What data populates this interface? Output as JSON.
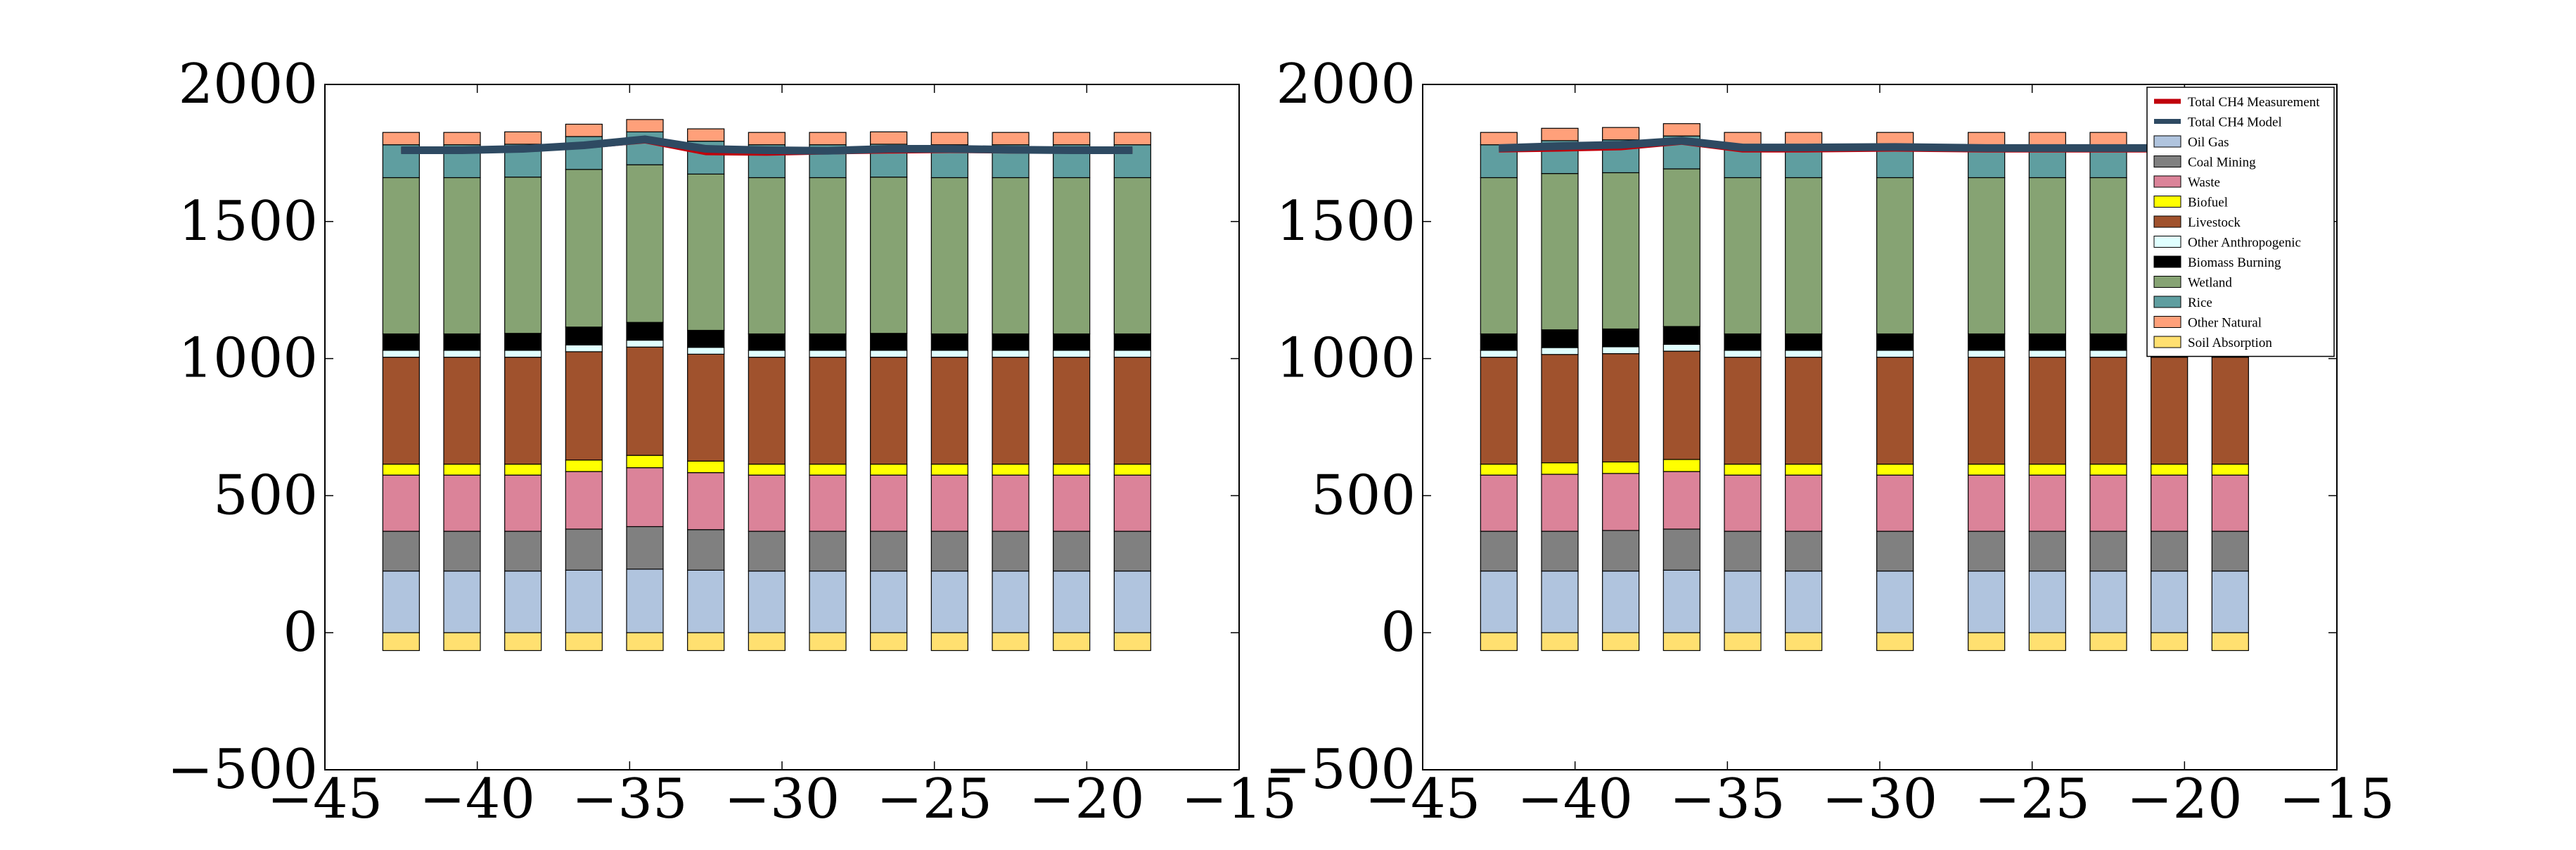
{
  "chart_data": [
    {
      "type": "bar",
      "stacked": true,
      "x": [
        -42.5,
        -40.5,
        -38.5,
        -36.5,
        -34.5,
        -32.5,
        -30.5,
        -28.5,
        -26.5,
        -24.5,
        -22.5,
        -20.5,
        -18.5
      ],
      "xlim": [
        -45,
        -15
      ],
      "ylim": [
        -500,
        2000
      ],
      "xticks": [
        -45,
        -40,
        -35,
        -30,
        -25,
        -20,
        -15
      ],
      "yticks": [
        -500,
        0,
        500,
        1000,
        1500,
        2000
      ],
      "xtick_labels": [
        "−45",
        "−40",
        "−35",
        "−30",
        "−25",
        "−20",
        "−15"
      ],
      "ytick_labels": [
        "−500",
        "0",
        "500",
        "1000",
        "1500",
        "2000"
      ],
      "grid": false,
      "stack_series": [
        {
          "name": "Oil  Gas",
          "values": [
            225,
            225,
            225,
            228,
            232,
            228,
            225,
            225,
            225,
            225,
            225,
            225,
            225
          ]
        },
        {
          "name": "Coal Mining",
          "values": [
            145,
            145,
            145,
            150,
            155,
            148,
            145,
            145,
            145,
            145,
            145,
            145,
            145
          ]
        },
        {
          "name": "Waste",
          "values": [
            205,
            205,
            205,
            210,
            215,
            208,
            205,
            205,
            205,
            205,
            205,
            205,
            205
          ]
        },
        {
          "name": "Biofuel",
          "values": [
            40,
            40,
            40,
            42,
            45,
            42,
            40,
            40,
            40,
            40,
            40,
            40,
            40
          ]
        },
        {
          "name": "Livestock",
          "values": [
            390,
            390,
            390,
            395,
            395,
            390,
            390,
            390,
            390,
            390,
            390,
            390,
            390
          ]
        },
        {
          "name": "Other Anthropogenic",
          "values": [
            25,
            25,
            25,
            25,
            25,
            25,
            25,
            25,
            25,
            25,
            25,
            25,
            25
          ]
        },
        {
          "name": "Biomass Burning",
          "values": [
            60,
            60,
            62,
            65,
            65,
            62,
            60,
            60,
            62,
            60,
            60,
            60,
            60
          ]
        },
        {
          "name": "Wetland",
          "values": [
            570,
            570,
            570,
            575,
            575,
            570,
            570,
            570,
            570,
            570,
            570,
            570,
            570
          ]
        },
        {
          "name": "Rice",
          "values": [
            120,
            120,
            120,
            120,
            120,
            120,
            120,
            120,
            120,
            120,
            120,
            120,
            120
          ]
        },
        {
          "name": "Other Natural",
          "values": [
            45,
            45,
            45,
            45,
            45,
            45,
            45,
            45,
            45,
            45,
            45,
            45,
            45
          ]
        }
      ],
      "negative_series": [
        {
          "name": "Soil Absorption",
          "values": [
            -65,
            -65,
            -65,
            -65,
            -65,
            -65,
            -65,
            -65,
            -65,
            -65,
            -65,
            -65,
            -65
          ]
        }
      ],
      "line_series": [
        {
          "name": "Total CH4 Measurement",
          "values": [
            1760,
            1762,
            1768,
            1775,
            1795,
            1752,
            1750,
            1755,
            1758,
            1760,
            1758,
            1758,
            1758
          ]
        },
        {
          "name": "Total CH4 Model",
          "values": [
            1760,
            1760,
            1765,
            1778,
            1800,
            1765,
            1760,
            1758,
            1765,
            1765,
            1762,
            1760,
            1760
          ]
        }
      ]
    },
    {
      "type": "bar",
      "stacked": true,
      "x": [
        -42.5,
        -40.5,
        -38.5,
        -36.5,
        -34.5,
        -32.5,
        -29.5,
        -26.5,
        -24.5,
        -22.5,
        -20.5,
        -18.5
      ],
      "xlim": [
        -45,
        -15
      ],
      "ylim": [
        -500,
        2000
      ],
      "xticks": [
        -45,
        -40,
        -35,
        -30,
        -25,
        -20,
        -15
      ],
      "yticks": [
        -500,
        0,
        500,
        1000,
        1500,
        2000
      ],
      "xtick_labels": [
        "−45",
        "−40",
        "−35",
        "−30",
        "−25",
        "−20",
        "−15"
      ],
      "ytick_labels": [
        "−500",
        "0",
        "500",
        "1000",
        "1500",
        "2000"
      ],
      "grid": false,
      "legend_position": "top-right",
      "stack_series": [
        {
          "name": "Oil  Gas",
          "values": [
            225,
            225,
            225,
            228,
            225,
            225,
            225,
            225,
            225,
            225,
            225,
            225
          ]
        },
        {
          "name": "Coal Mining",
          "values": [
            145,
            145,
            148,
            150,
            145,
            145,
            145,
            145,
            145,
            145,
            145,
            145
          ]
        },
        {
          "name": "Waste",
          "values": [
            205,
            208,
            208,
            210,
            205,
            205,
            205,
            205,
            205,
            205,
            205,
            205
          ]
        },
        {
          "name": "Biofuel",
          "values": [
            40,
            42,
            42,
            44,
            40,
            40,
            40,
            40,
            40,
            40,
            40,
            40
          ]
        },
        {
          "name": "Livestock",
          "values": [
            390,
            395,
            395,
            395,
            390,
            390,
            390,
            390,
            390,
            390,
            390,
            390
          ]
        },
        {
          "name": "Other Anthropogenic",
          "values": [
            25,
            25,
            25,
            25,
            25,
            25,
            25,
            25,
            25,
            25,
            25,
            25
          ]
        },
        {
          "name": "Biomass Burning",
          "values": [
            60,
            65,
            65,
            65,
            60,
            60,
            60,
            60,
            60,
            60,
            60,
            60
          ]
        },
        {
          "name": "Wetland",
          "values": [
            570,
            570,
            570,
            575,
            570,
            570,
            570,
            570,
            570,
            570,
            570,
            570
          ]
        },
        {
          "name": "Rice",
          "values": [
            120,
            120,
            120,
            120,
            120,
            120,
            120,
            120,
            120,
            120,
            120,
            120
          ]
        },
        {
          "name": "Other Natural",
          "values": [
            45,
            45,
            45,
            45,
            45,
            45,
            45,
            45,
            45,
            45,
            45,
            45
          ]
        }
      ],
      "negative_series": [
        {
          "name": "Soil Absorption",
          "values": [
            -65,
            -65,
            -65,
            -65,
            -65,
            -65,
            -65,
            -65,
            -65,
            -65,
            -65,
            -65
          ]
        }
      ],
      "line_series": [
        {
          "name": "Total CH4 Measurement",
          "values": [
            1762,
            1765,
            1770,
            1790,
            1762,
            1762,
            1765,
            1762,
            1762,
            1762,
            1762,
            1762
          ]
        },
        {
          "name": "Total CH4 Model",
          "values": [
            1768,
            1775,
            1780,
            1795,
            1770,
            1770,
            1772,
            1768,
            1768,
            1768,
            1768,
            1768
          ]
        }
      ]
    }
  ],
  "legend": {
    "items": [
      {
        "label": "Total CH4 Measurement",
        "kind": "line",
        "color": "#c0000b"
      },
      {
        "label": "Total CH4 Model",
        "kind": "line",
        "color": "#2e4a62"
      },
      {
        "label": "Oil  Gas",
        "kind": "patch",
        "color": "#b0c4de"
      },
      {
        "label": "Coal Mining",
        "kind": "patch",
        "color": "#808080"
      },
      {
        "label": "Waste",
        "kind": "patch",
        "color": "#db8399"
      },
      {
        "label": "Biofuel",
        "kind": "patch",
        "color": "#ffff00"
      },
      {
        "label": "Livestock",
        "kind": "patch",
        "color": "#a0522d"
      },
      {
        "label": "Other Anthropogenic",
        "kind": "patch",
        "color": "#e0ffff"
      },
      {
        "label": "Biomass Burning",
        "kind": "patch",
        "color": "#000000"
      },
      {
        "label": "Wetland",
        "kind": "patch",
        "color": "#86a373"
      },
      {
        "label": "Rice",
        "kind": "patch",
        "color": "#5f9ea0"
      },
      {
        "label": "Other Natural",
        "kind": "patch",
        "color": "#ffa07a"
      },
      {
        "label": "Soil Absorption",
        "kind": "patch",
        "color": "#ffe070"
      }
    ]
  }
}
